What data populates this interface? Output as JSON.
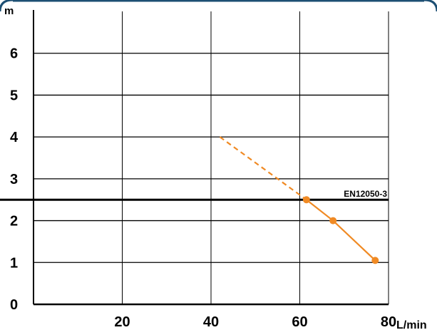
{
  "chart_data": {
    "type": "line",
    "xlabel": "L/min",
    "ylabel": "m",
    "xlim": [
      0,
      80
    ],
    "ylim": [
      0,
      7
    ],
    "x_ticks": [
      20,
      40,
      60,
      80
    ],
    "y_ticks": [
      0,
      1,
      2,
      3,
      4,
      5,
      6
    ],
    "grid": true,
    "reference_line": {
      "label": "EN12050-3",
      "y": 2.5
    },
    "series": [
      {
        "style": "solid",
        "color": "#f08a24",
        "markers": true,
        "points": [
          [
            61.5,
            2.5
          ],
          [
            67.5,
            2.0
          ],
          [
            77.0,
            1.05
          ]
        ]
      },
      {
        "style": "dashed",
        "color": "#f08a24",
        "markers": false,
        "points": [
          [
            42.0,
            4.0
          ],
          [
            61.5,
            2.5
          ]
        ]
      }
    ],
    "colors": {
      "axis": "#000000",
      "grid": "#000000",
      "frame": "#1d4f73",
      "series": "#f08a24"
    }
  }
}
